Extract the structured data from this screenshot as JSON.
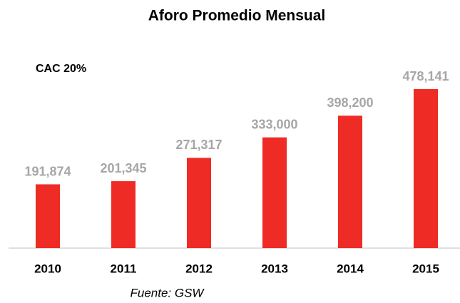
{
  "chart_data": {
    "type": "bar",
    "title": "Aforo Promedio Mensual",
    "annotations": [
      "CAC 20%",
      "Fuente: GSW"
    ],
    "categories": [
      "2010",
      "2011",
      "2012",
      "2013",
      "2014",
      "2015"
    ],
    "values": [
      191874,
      201345,
      271317,
      333000,
      398200,
      478141
    ],
    "value_labels": [
      "191,874",
      "201,345",
      "271,317",
      "333,000",
      "398,200",
      "478,141"
    ],
    "color": "#ee2b24"
  }
}
